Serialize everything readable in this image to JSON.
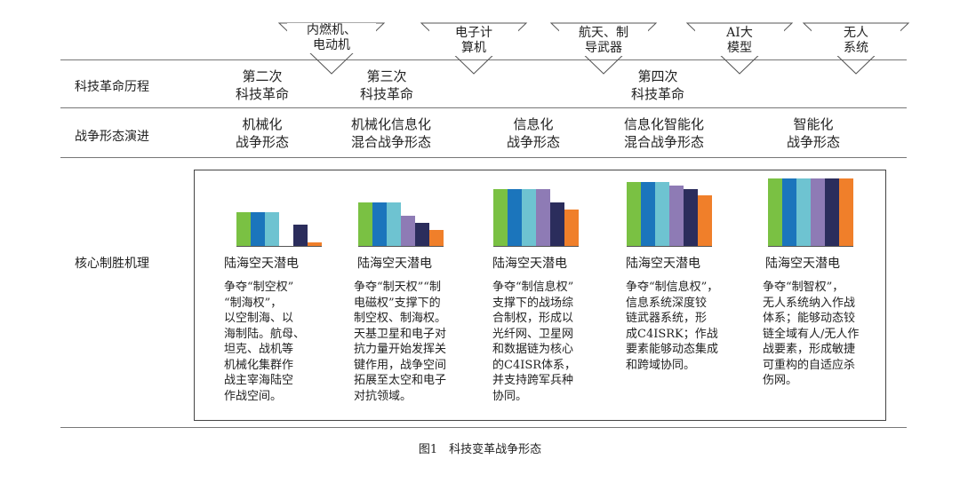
{
  "triangles": [
    {
      "lines": "内燃机、\n电动机"
    },
    {
      "lines": "电子计\n算机"
    },
    {
      "lines": "航天、制\n导武器"
    },
    {
      "lines": "AI大\n模型"
    },
    {
      "lines": "无人\n系统"
    }
  ],
  "rows": {
    "history_label": "科技革命历程",
    "war_label": "战争形态演进",
    "core_label": "核心制胜机理"
  },
  "revolutions": [
    {
      "text": "第二次\n科技革命"
    },
    {
      "text": "第三次\n科技革命"
    },
    {
      "text": "第四次\n科技革命"
    }
  ],
  "war_forms": [
    {
      "text": "机械化\n战争形态"
    },
    {
      "text": "机械化信息化\n混合战争形态"
    },
    {
      "text": "信息化\n战争形态"
    },
    {
      "text": "信息化智能化\n混合战争形态"
    },
    {
      "text": "智能化\n战争形态"
    }
  ],
  "colors": [
    "#7ac143",
    "#1b75bc",
    "#6ec3d1",
    "#8e7bb5",
    "#2b2d5c",
    "#f07f2a"
  ],
  "domains_label": "陆海空天潜电",
  "panels": [
    {
      "levels": [
        0.5,
        0.5,
        0.5,
        0.0,
        0.32,
        0.07
      ],
      "desc": "争夺“制空权”\n“制海权”，\n以空制海、以\n海制陆。航母、\n坦克、战机等\n机械化集群作\n战主宰海陆空\n作战空间。"
    },
    {
      "levels": [
        0.65,
        0.65,
        0.65,
        0.45,
        0.35,
        0.25
      ],
      "desc": "争夺“制天权”“制\n电磁权”支撑下的\n制空权、制海权。\n天基卫星和电子对\n抗力量开始发挥关\n键作用，战争空间\n拓展至太空和电子\n对抗领域。"
    },
    {
      "levels": [
        0.85,
        0.85,
        0.85,
        0.85,
        0.65,
        0.55
      ],
      "desc": "争夺“制信息权”\n支撑下的战场综\n合制权，形成以\n光纤网、卫星网\n和数据链为核心\n的C4ISR体系，\n并支持跨军兵种\n协同。"
    },
    {
      "levels": [
        0.95,
        0.95,
        0.95,
        0.9,
        0.85,
        0.75
      ],
      "desc": "争夺“制信息权”，\n信息系统深度铰\n链武器系统，形\n成C4ISRK；作战\n要素能够动态集成\n和跨域协同。"
    },
    {
      "levels": [
        1.0,
        1.0,
        1.0,
        1.0,
        1.0,
        1.0
      ],
      "desc": "争夺“制智权”，\n无人系统纳入作战\n体系；能够动态铰\n链全域有人/无人作\n战要素，形成敏捷\n可重构的自适应杀\n伤网。"
    }
  ],
  "caption": "图1　科技变革战争形态"
}
